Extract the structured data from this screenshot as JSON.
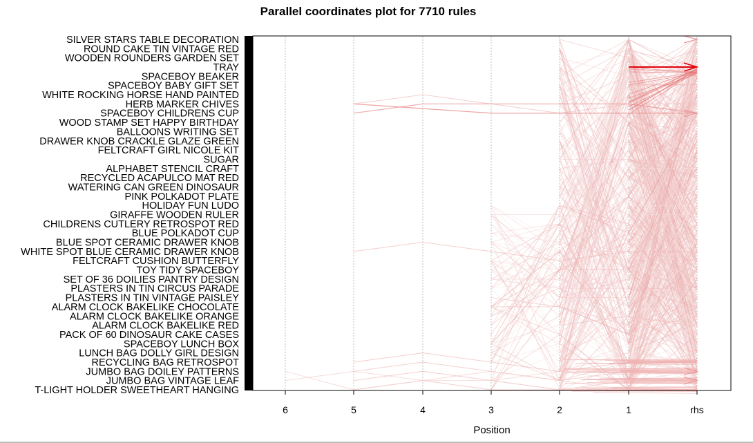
{
  "chart_data": {
    "type": "parallel-coordinates",
    "title": "Parallel coordinates plot for 7710 rules",
    "xlabel": "Position",
    "x_ticks": [
      "6",
      "5",
      "4",
      "3",
      "2",
      "1",
      "rhs"
    ],
    "y_items": [
      "SILVER STARS TABLE DECORATION",
      "ROUND CAKE TIN VINTAGE RED",
      "WOODEN ROUNDERS GARDEN SET",
      "TRAY",
      "SPACEBOY BEAKER",
      "SPACEBOY BABY GIFT SET",
      "WHITE ROCKING HORSE HAND PAINTED",
      "HERB MARKER CHIVES",
      "SPACEBOY CHILDRENS CUP",
      "WOOD STAMP SET HAPPY BIRTHDAY",
      "BALLOONS WRITING SET",
      "DRAWER KNOB CRACKLE GLAZE GREEN",
      "FELTCRAFT GIRL NICOLE KIT",
      "SUGAR",
      "ALPHABET STENCIL CRAFT",
      "RECYCLED ACAPULCO MAT RED",
      "WATERING CAN GREEN DINOSAUR",
      "PINK POLKADOT PLATE",
      "HOLIDAY FUN LUDO",
      "GIRAFFE WOODEN RULER",
      "CHILDRENS CUTLERY RETROSPOT RED",
      "BLUE POLKADOT CUP",
      "BLUE SPOT CERAMIC DRAWER KNOB",
      "WHITE SPOT BLUE CERAMIC DRAWER KNOB",
      "FELTCRAFT CUSHION BUTTERFLY",
      "TOY TIDY SPACEBOY",
      "SET OF 36 DOILIES PANTRY DESIGN",
      "PLASTERS IN TIN CIRCUS PARADE",
      "PLASTERS IN TIN VINTAGE PAISLEY",
      "ALARM CLOCK BAKELIKE CHOCOLATE",
      "ALARM CLOCK BAKELIKE ORANGE",
      "ALARM CLOCK BAKELIKE RED",
      "PACK OF 60 DINOSAUR CAKE CASES",
      "SPACEBOY LUNCH BOX",
      "LUNCH BAG DOLLY GIRL DESIGN",
      "RECYCLING BAG RETROSPOT",
      "JUMBO BAG DOILEY PATTERNS",
      "JUMBO BAG VINTAGE LEAF",
      "T-LIGHT HOLDER SWEETHEART HANGING"
    ],
    "n_rules": 7710,
    "grid": true,
    "colors": {
      "strong": "#e0000b",
      "medium": "#ee9a9a",
      "faint": "#f5d9d9",
      "grid": "#bdbdbd",
      "frame": "#000000"
    }
  }
}
